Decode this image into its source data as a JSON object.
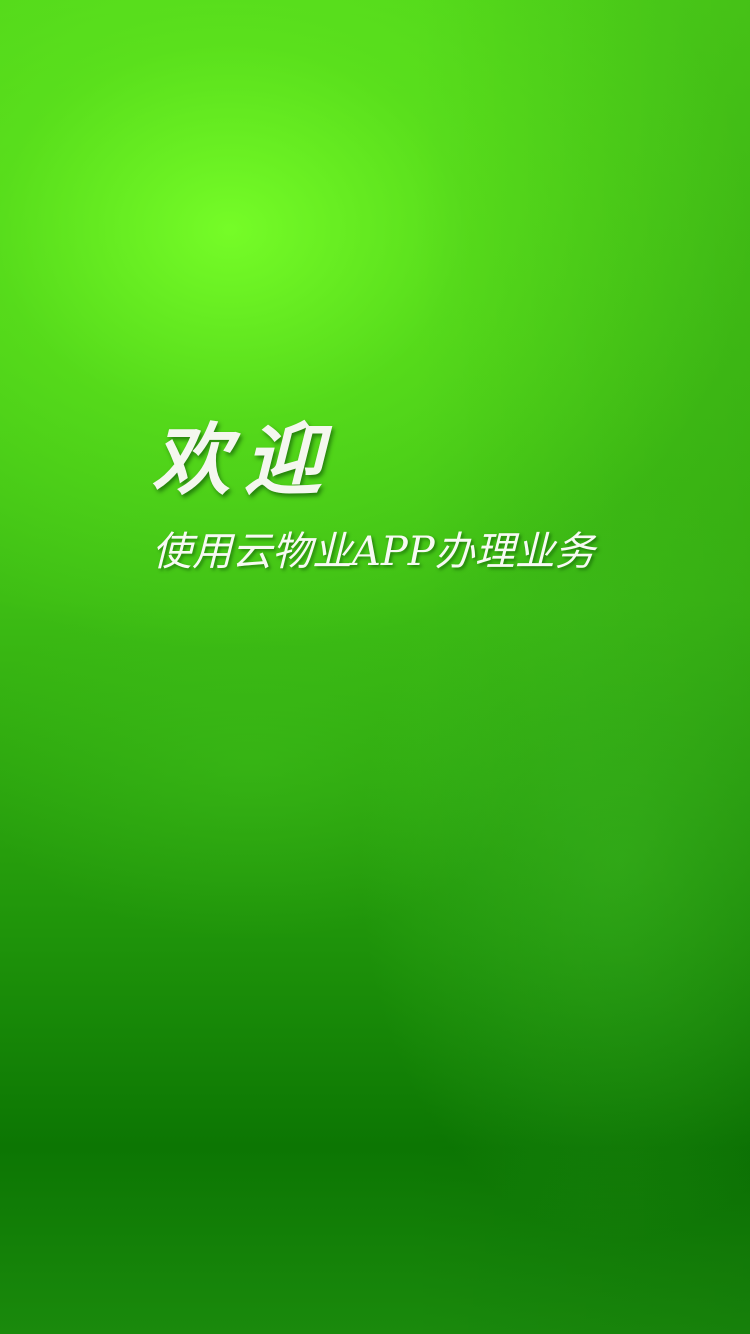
{
  "splash": {
    "title": "欢迎",
    "subtitle": "使用云物业APP办理业务"
  },
  "colors": {
    "background_top_highlight": "#78ff28",
    "background_mid": "#3dbd14",
    "background_bottom": "#0c7603",
    "text": "#f4f7ef"
  }
}
